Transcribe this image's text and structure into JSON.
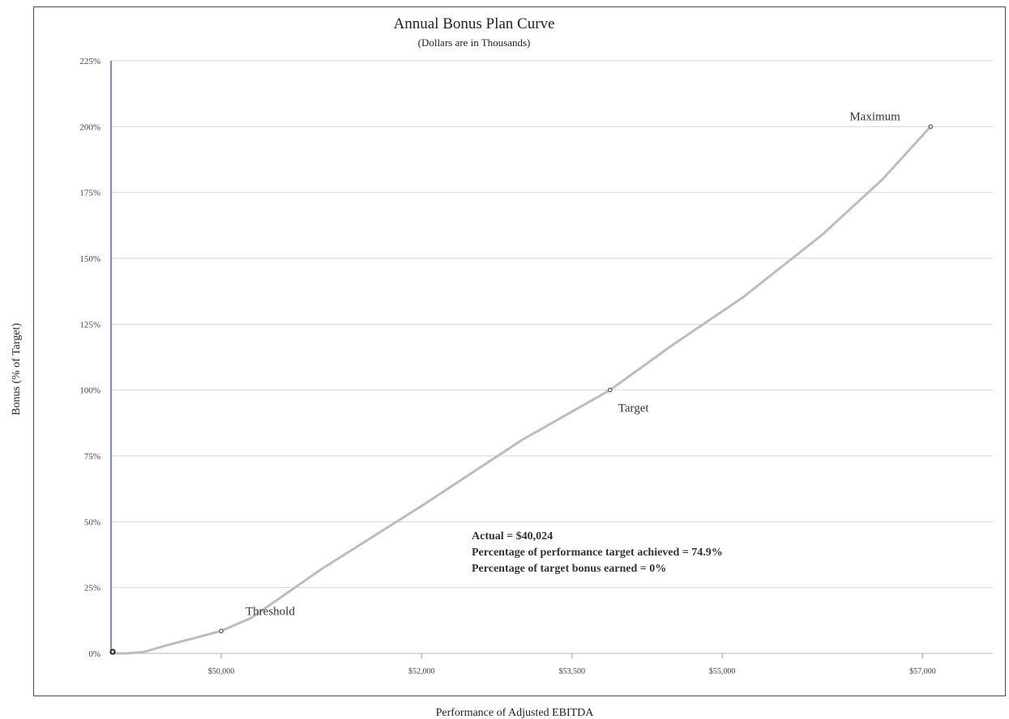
{
  "chart_data": {
    "type": "line",
    "title": "Annual Bonus Plan Curve",
    "subtitle": "(Dollars are in Thousands)",
    "xlabel": "Performance of Adjusted EBITDA",
    "ylabel": "Bonus (% of Target)",
    "xlim": [
      48900,
      57700
    ],
    "ylim": [
      0,
      225
    ],
    "x_ticks": [
      {
        "value": 50000,
        "label": "$50,000"
      },
      {
        "value": 52000,
        "label": "$52,000"
      },
      {
        "value": 53500,
        "label": "$53,500"
      },
      {
        "value": 55000,
        "label": "$55,000"
      },
      {
        "value": 57000,
        "label": "$57,000"
      }
    ],
    "y_ticks": [
      {
        "value": 0,
        "label": "0%"
      },
      {
        "value": 25,
        "label": "25%"
      },
      {
        "value": 50,
        "label": "50%"
      },
      {
        "value": 75,
        "label": "75%"
      },
      {
        "value": 100,
        "label": "100%"
      },
      {
        "value": 125,
        "label": "125%"
      },
      {
        "value": 150,
        "label": "150%"
      },
      {
        "value": 175,
        "label": "175%"
      },
      {
        "value": 200,
        "label": "200%"
      },
      {
        "value": 225,
        "label": "225%"
      }
    ],
    "grid": true,
    "series": [
      {
        "color": "#bdbdbd",
        "x": [
          48900,
          49050,
          49220,
          49450,
          50000,
          50300,
          51000,
          52000,
          53000,
          53880,
          54500,
          55200,
          56000,
          56600,
          57080
        ],
        "y": [
          0,
          0,
          0.5,
          3,
          8.5,
          13.5,
          32,
          56,
          81,
          100,
          117,
          135,
          159,
          180,
          200
        ]
      }
    ],
    "key_points": [
      {
        "name": "Threshold",
        "x": 50000,
        "y": 8.5
      },
      {
        "name": "Target",
        "x": 53880,
        "y": 100
      },
      {
        "name": "Maximum",
        "x": 57080,
        "y": 200
      }
    ],
    "actual_marker": {
      "x": 48900,
      "y": 0
    },
    "annotations": [
      "Actual = $40,024",
      "Percentage of performance target achieved = 74.9%",
      "Percentage of target bonus earned = 0%"
    ]
  }
}
